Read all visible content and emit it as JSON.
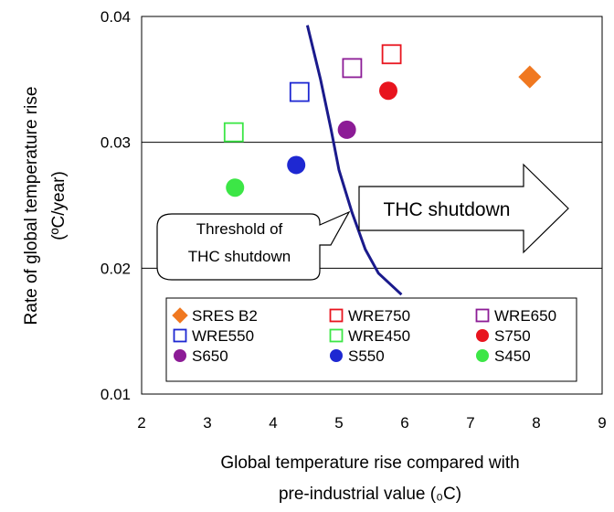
{
  "chart_data": {
    "type": "scatter",
    "xlabel_line1": "Global temperature rise compared with",
    "xlabel_line2": "pre-industrial value (₀C)",
    "ylabel_line1": "Rate of global temperature rise",
    "ylabel_line2": "(ºC/year)",
    "xlim": [
      2,
      9
    ],
    "ylim": [
      0.01,
      0.04
    ],
    "x_ticks": [
      2,
      3,
      4,
      5,
      6,
      7,
      8,
      9
    ],
    "y_ticks": [
      0.01,
      0.02,
      0.03,
      0.04
    ],
    "x_tick_labels": [
      "2",
      "3",
      "4",
      "5",
      "6",
      "7",
      "8",
      "9"
    ],
    "y_tick_labels": [
      "0.01",
      "0.02",
      "0.03",
      "0.04"
    ],
    "grid": "horizontal",
    "legend_position": "bottom-inside",
    "series": [
      {
        "name": "SRES B2",
        "marker": "diamond",
        "color": "#f07820",
        "filled": true,
        "x": 7.9,
        "y": 0.0352
      },
      {
        "name": "WRE750",
        "marker": "square",
        "color": "#e8141e",
        "filled": false,
        "x": 5.8,
        "y": 0.037
      },
      {
        "name": "WRE650",
        "marker": "square",
        "color": "#8c1c96",
        "filled": false,
        "x": 5.2,
        "y": 0.0359
      },
      {
        "name": "WRE550",
        "marker": "square",
        "color": "#1e28d2",
        "filled": false,
        "x": 4.4,
        "y": 0.034
      },
      {
        "name": "WRE450",
        "marker": "square",
        "color": "#3ce646",
        "filled": false,
        "x": 3.4,
        "y": 0.0308
      },
      {
        "name": "S750",
        "marker": "circle",
        "color": "#e8141e",
        "filled": true,
        "x": 5.75,
        "y": 0.0341
      },
      {
        "name": "S650",
        "marker": "circle",
        "color": "#8c1c96",
        "filled": true,
        "x": 5.12,
        "y": 0.031
      },
      {
        "name": "S550",
        "marker": "circle",
        "color": "#1e28d2",
        "filled": true,
        "x": 4.35,
        "y": 0.0282
      },
      {
        "name": "S450",
        "marker": "circle",
        "color": "#3ce646",
        "filled": true,
        "x": 3.42,
        "y": 0.0264
      }
    ],
    "threshold_line": {
      "color": "#1a1a8c",
      "x": [
        4.52,
        4.72,
        4.88,
        5.0,
        5.2,
        5.4,
        5.6,
        5.95
      ],
      "y": [
        0.0393,
        0.035,
        0.031,
        0.0278,
        0.0244,
        0.0215,
        0.0196,
        0.0179
      ]
    },
    "annotations": {
      "threshold_label_line1": "Threshold of",
      "threshold_label_line2": "THC shutdown",
      "arrow_label": "THC shutdown"
    }
  }
}
